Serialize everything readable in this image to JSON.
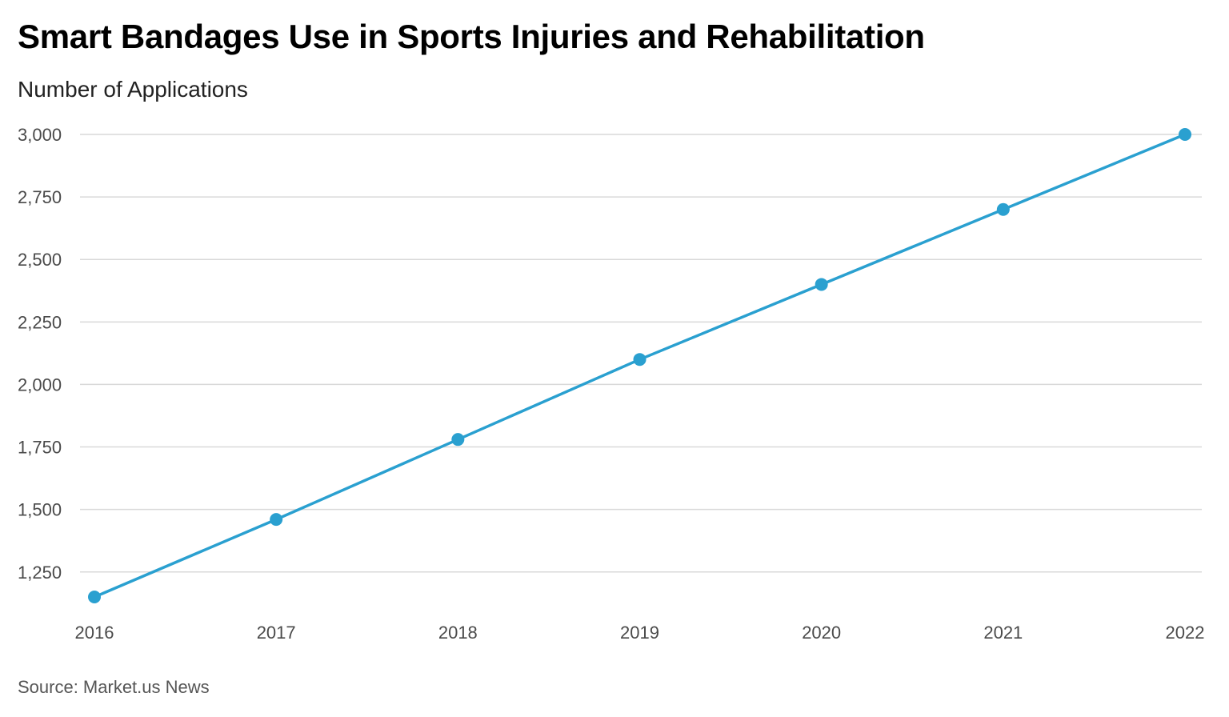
{
  "title": "Smart Bandages Use in Sports Injuries and Rehabilitation",
  "subtitle": "Number of Applications",
  "source": "Source: Market.us News",
  "colors": {
    "line": "#2aa0d0",
    "grid": "#d9d9d9",
    "tick_text": "#4a4a4a"
  },
  "chart_data": {
    "type": "line",
    "title": "Smart Bandages Use in Sports Injuries and Rehabilitation",
    "ylabel": "Number of Applications",
    "xlabel": "",
    "categories": [
      "2016",
      "2017",
      "2018",
      "2019",
      "2020",
      "2021",
      "2022"
    ],
    "series": [
      {
        "values": [
          1150,
          1460,
          1780,
          2100,
          2400,
          2700,
          3000
        ]
      }
    ],
    "ylim": [
      1150,
      3000
    ],
    "y_ticks": [
      1250,
      1500,
      1750,
      2000,
      2250,
      2500,
      2750,
      3000
    ],
    "y_tick_labels": [
      "1,250",
      "1,500",
      "1,750",
      "2,000",
      "2,250",
      "2,500",
      "2,750",
      "3,000"
    ],
    "grid": true,
    "legend": "none",
    "markers": true
  }
}
